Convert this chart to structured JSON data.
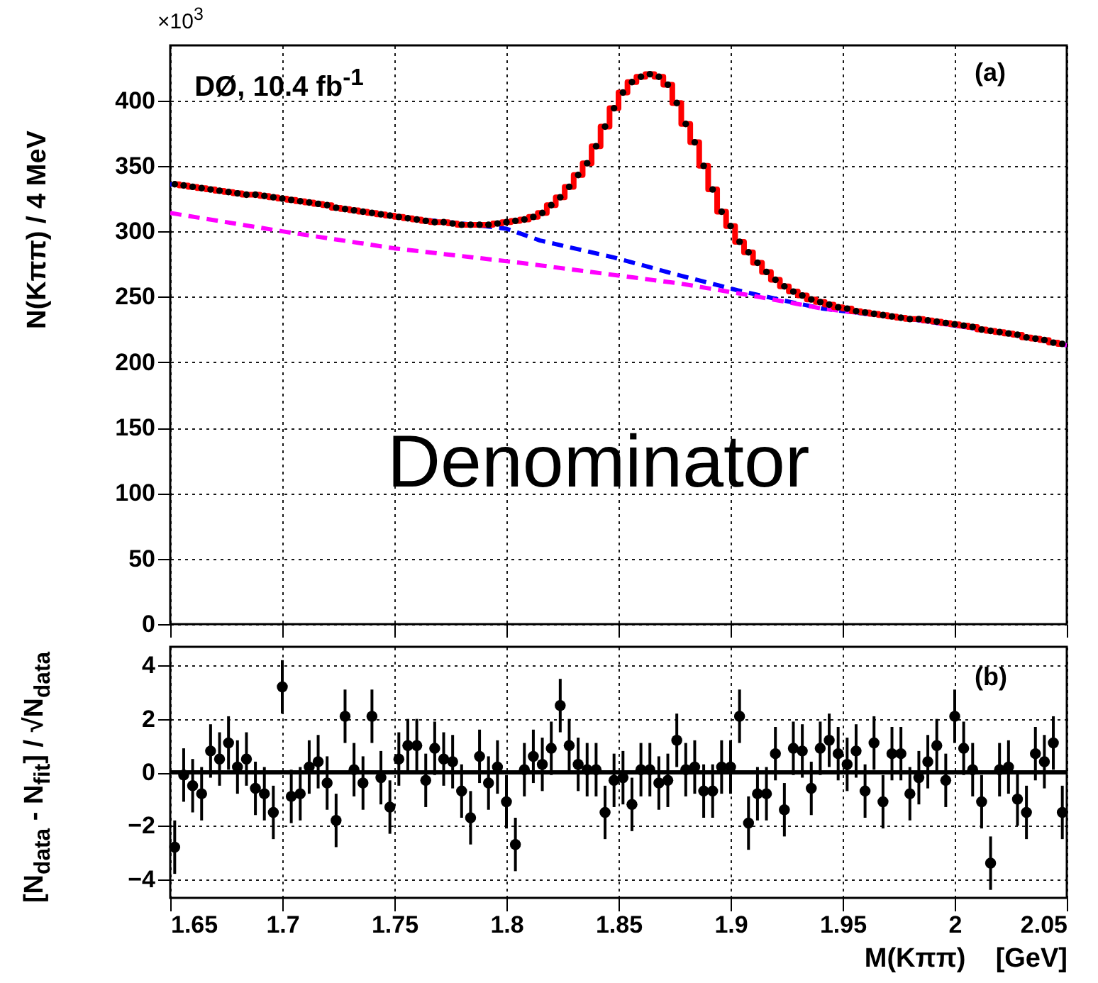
{
  "chart_data": [
    {
      "type": "scatter",
      "ylabel": "N(Kππ) / 4 MeV",
      "annotations": [
        "×10$^{3}$",
        "DØ, 10.4 fb$^{-1}$",
        "(a)",
        "Denominator"
      ],
      "xlim": [
        1.65,
        2.05
      ],
      "xticks": [
        1.65,
        1.7,
        1.75,
        1.8,
        1.85,
        1.9,
        1.95,
        2,
        2.05
      ],
      "ylim": [
        0,
        442
      ],
      "yticks": [
        0,
        50,
        100,
        150,
        200,
        250,
        300,
        350,
        400
      ],
      "grid": true,
      "tick_labels": "y",
      "x": [
        1.652,
        1.656,
        1.66,
        1.664,
        1.668,
        1.672,
        1.676,
        1.68,
        1.684,
        1.688,
        1.692,
        1.696,
        1.7,
        1.704,
        1.708,
        1.712,
        1.716,
        1.72,
        1.724,
        1.728,
        1.732,
        1.736,
        1.74,
        1.744,
        1.748,
        1.752,
        1.756,
        1.76,
        1.764,
        1.768,
        1.772,
        1.776,
        1.78,
        1.784,
        1.788,
        1.792,
        1.796,
        1.8,
        1.804,
        1.808,
        1.812,
        1.816,
        1.82,
        1.824,
        1.828,
        1.832,
        1.836,
        1.84,
        1.844,
        1.848,
        1.852,
        1.856,
        1.86,
        1.864,
        1.868,
        1.872,
        1.876,
        1.88,
        1.884,
        1.888,
        1.892,
        1.896,
        1.9,
        1.904,
        1.908,
        1.912,
        1.916,
        1.92,
        1.924,
        1.928,
        1.932,
        1.936,
        1.94,
        1.944,
        1.948,
        1.952,
        1.956,
        1.96,
        1.964,
        1.968,
        1.972,
        1.976,
        1.98,
        1.984,
        1.988,
        1.992,
        1.996,
        2.0,
        2.004,
        2.008,
        2.012,
        2.016,
        2.02,
        2.024,
        2.028,
        2.032,
        2.036,
        2.04,
        2.044,
        2.048
      ],
      "series": [
        {
          "type": "line",
          "color": "#0000ff",
          "line_style": "dashed",
          "x": [
            1.65,
            1.7,
            1.75,
            1.78,
            1.8,
            1.815,
            1.848,
            1.878,
            1.903,
            1.924,
            1.941,
            1.98,
            2.02,
            2.05
          ],
          "values": [
            336,
            325,
            311,
            306,
            302,
            293,
            280,
            266,
            255,
            247,
            241,
            233,
            223,
            213
          ]
        },
        {
          "type": "line",
          "color": "#ff00ff",
          "line_style": "dashed",
          "x": [
            1.65,
            1.7,
            1.75,
            1.806,
            1.878,
            1.909,
            1.941,
            1.98,
            2.02,
            2.05
          ],
          "values": [
            314,
            300,
            287,
            276,
            260,
            251,
            241,
            233,
            223,
            213
          ]
        },
        {
          "type": "step",
          "color": "#ff0000",
          "line_style": "solid",
          "values": [
            336,
            335,
            334,
            333,
            332,
            331,
            330,
            329,
            328,
            328,
            327,
            326,
            325,
            324,
            323,
            322,
            321,
            320,
            318,
            317,
            316,
            315,
            314,
            313,
            312,
            311,
            310,
            309,
            308,
            307,
            307,
            306,
            305,
            305,
            305,
            305,
            306,
            307,
            308,
            309,
            311,
            314,
            320,
            326,
            334,
            343,
            352,
            365,
            380,
            394,
            406,
            414,
            418,
            420,
            418,
            412,
            398,
            382,
            368,
            350,
            332,
            315,
            304,
            292,
            284,
            276,
            269,
            263,
            258,
            254,
            251,
            248,
            246,
            244,
            242,
            241,
            239,
            238,
            237,
            236,
            235,
            234,
            233,
            233,
            232,
            231,
            230,
            229,
            228,
            227,
            225,
            224,
            223,
            222,
            221,
            219,
            218,
            217,
            215,
            214
          ]
        },
        {
          "color": "#000000",
          "marker": "circle",
          "values": [
            336,
            335,
            334,
            333,
            332,
            331,
            330,
            329,
            328,
            328,
            327,
            326,
            325,
            324,
            323,
            322,
            321,
            320,
            318,
            317,
            316,
            315,
            314,
            313,
            312,
            311,
            310,
            309,
            308,
            307,
            307,
            306,
            305,
            305,
            305,
            305,
            306,
            307,
            308,
            309,
            311,
            314,
            320,
            326,
            334,
            343,
            352,
            365,
            380,
            394,
            406,
            414,
            418,
            420,
            418,
            412,
            398,
            382,
            368,
            350,
            332,
            315,
            304,
            292,
            284,
            276,
            269,
            263,
            258,
            254,
            251,
            248,
            246,
            244,
            242,
            241,
            239,
            238,
            237,
            236,
            235,
            234,
            233,
            233,
            232,
            231,
            230,
            229,
            228,
            227,
            225,
            224,
            223,
            222,
            221,
            219,
            218,
            217,
            215,
            214
          ]
        }
      ]
    },
    {
      "type": "scatter",
      "xlabel": "M(Kππ)    [GeV]",
      "ylabel": "[N$_{data}$ - N$_{fit}$] / √N$_{data}$",
      "annotations": [
        "(b)"
      ],
      "xlim": [
        1.65,
        2.05
      ],
      "xticks": [
        1.65,
        1.7,
        1.75,
        1.8,
        1.85,
        1.9,
        1.95,
        2,
        2.05
      ],
      "ylim": [
        -4.7,
        4.7
      ],
      "yticks": [
        -4,
        -2,
        0,
        2,
        4
      ],
      "grid": true,
      "marker": "circle",
      "ref_lines": [
        {
          "axis": "y",
          "value": 0,
          "color": "#000000"
        }
      ],
      "x": [
        1.652,
        1.656,
        1.66,
        1.664,
        1.668,
        1.672,
        1.676,
        1.68,
        1.684,
        1.688,
        1.692,
        1.696,
        1.7,
        1.704,
        1.708,
        1.712,
        1.716,
        1.72,
        1.724,
        1.728,
        1.732,
        1.736,
        1.74,
        1.744,
        1.748,
        1.752,
        1.756,
        1.76,
        1.764,
        1.768,
        1.772,
        1.776,
        1.78,
        1.784,
        1.788,
        1.792,
        1.796,
        1.8,
        1.804,
        1.808,
        1.812,
        1.816,
        1.82,
        1.824,
        1.828,
        1.832,
        1.836,
        1.84,
        1.844,
        1.848,
        1.852,
        1.856,
        1.86,
        1.864,
        1.868,
        1.872,
        1.876,
        1.88,
        1.884,
        1.888,
        1.892,
        1.896,
        1.9,
        1.904,
        1.908,
        1.912,
        1.916,
        1.92,
        1.924,
        1.928,
        1.932,
        1.936,
        1.94,
        1.944,
        1.948,
        1.952,
        1.956,
        1.96,
        1.964,
        1.968,
        1.972,
        1.976,
        1.98,
        1.984,
        1.988,
        1.992,
        1.996,
        2.0,
        2.004,
        2.008,
        2.012,
        2.016,
        2.02,
        2.024,
        2.028,
        2.032,
        2.036,
        2.04,
        2.044,
        2.048
      ],
      "series": [
        {
          "color": "#000000",
          "values": [
            -2.8,
            -0.1,
            -0.5,
            -0.8,
            0.8,
            0.5,
            1.1,
            0.2,
            0.5,
            -0.6,
            -0.8,
            -1.5,
            3.2,
            -0.9,
            -0.8,
            0.2,
            0.4,
            -0.4,
            -1.8,
            2.1,
            0.1,
            -0.4,
            2.1,
            -0.2,
            -1.3,
            0.5,
            1.0,
            1.0,
            -0.3,
            0.9,
            0.5,
            0.4,
            -0.7,
            -1.7,
            0.6,
            -0.4,
            0.2,
            -1.1,
            -2.7,
            0.1,
            0.6,
            0.3,
            0.9,
            2.5,
            1.0,
            0.3,
            0.1,
            0.1,
            -1.5,
            -0.3,
            -0.2,
            -1.2,
            0.1,
            0.1,
            -0.4,
            -0.3,
            1.2,
            0.1,
            0.2,
            -0.7,
            -0.7,
            0.2,
            0.2,
            2.1,
            -1.9,
            -0.8,
            -0.8,
            0.7,
            -1.4,
            0.9,
            0.8,
            -0.6,
            0.9,
            1.2,
            0.7,
            0.3,
            0.8,
            -0.7,
            1.1,
            -1.1,
            0.7,
            0.7,
            -0.8,
            -0.2,
            0.4,
            1.0,
            -0.3,
            2.1,
            0.9,
            0.1,
            -1.1,
            -3.4,
            0.1,
            0.2,
            -1.0,
            -1.5,
            0.7,
            0.4,
            1.1,
            -1.5
          ],
          "errors": [
            1,
            1,
            1,
            1,
            1,
            1,
            1,
            1,
            1,
            1,
            1,
            1,
            1,
            1,
            1,
            1,
            1,
            1,
            1,
            1,
            1,
            1,
            1,
            1,
            1,
            1,
            1,
            1,
            1,
            1,
            1,
            1,
            1,
            1,
            1,
            1,
            1,
            1,
            1,
            1,
            1,
            1,
            1,
            1,
            1,
            1,
            1,
            1,
            1,
            1,
            1,
            1,
            1,
            1,
            1,
            1,
            1,
            1,
            1,
            1,
            1,
            1,
            1,
            1,
            1,
            1,
            1,
            1,
            1,
            1,
            1,
            1,
            1,
            1,
            1,
            1,
            1,
            1,
            1,
            1,
            1,
            1,
            1,
            1,
            1,
            1,
            1,
            1,
            1,
            1,
            1,
            1,
            1,
            1,
            1,
            1,
            1,
            1,
            1,
            1
          ]
        }
      ]
    }
  ]
}
